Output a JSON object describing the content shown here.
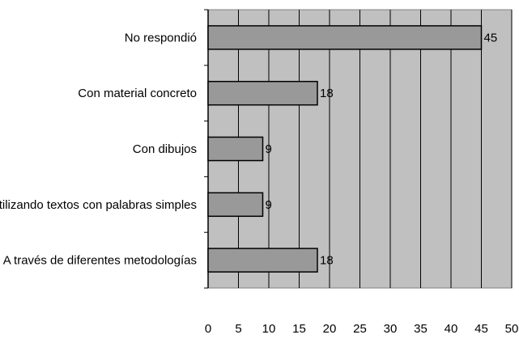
{
  "chart_data": {
    "type": "bar",
    "orientation": "horizontal",
    "title": "",
    "xlabel": "",
    "ylabel": "",
    "categories": [
      "No respondió",
      "Con material concreto",
      "Con dibujos",
      "Utilizando textos con palabras simples",
      "A través de diferentes metodologías"
    ],
    "values": [
      45,
      18,
      9,
      9,
      18
    ],
    "data_labels": [
      "45",
      "18",
      "9",
      "9",
      "18"
    ],
    "xlim": [
      0,
      50
    ],
    "x_ticks": [
      0,
      5,
      10,
      15,
      20,
      25,
      30,
      35,
      40,
      45,
      50
    ],
    "grid": true,
    "legend": "none",
    "colors": {
      "plot_background": "#c0c0c0",
      "bar_fill": "#999999",
      "bar_stroke": "#000000",
      "grid": "#000000"
    }
  }
}
